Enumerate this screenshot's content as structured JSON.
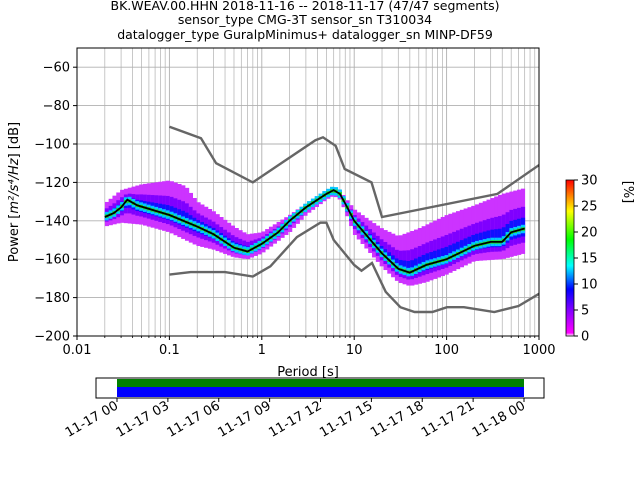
{
  "chart_data": {
    "type": "heatmap",
    "title_lines": [
      "BK.WEAV.00.HHN   2018-11-16 -- 2018-11-17  (47/47 segments)",
      "sensor_type CMG-3T sensor_sn T310034",
      "datalogger_type GuralpMinimus+ datalogger_sn MINP-DF59"
    ],
    "xlabel": "Period [s]",
    "ylabel_prefix": "Power [",
    "ylabel_math": "m²/s⁴/Hz",
    "ylabel_suffix": "] [dB]",
    "xscale": "log",
    "xlim": [
      0.01,
      1000
    ],
    "ylim": [
      -200,
      -50
    ],
    "grid": true,
    "x_ticks": [
      0.01,
      0.1,
      1,
      10,
      100,
      1000
    ],
    "x_tick_labels": [
      "0.01",
      "0.1",
      "1",
      "10",
      "100",
      "1000"
    ],
    "y_ticks": [
      -200,
      -180,
      -160,
      -140,
      -120,
      -100,
      -80,
      -60
    ],
    "y_tick_labels": [
      "−200",
      "−180",
      "−160",
      "−140",
      "−120",
      "−100",
      "−80",
      "−60"
    ],
    "colorbar": {
      "label": "[%]",
      "range": [
        0,
        30
      ],
      "ticks": [
        0,
        5,
        10,
        15,
        20,
        25,
        30
      ],
      "tick_labels": [
        "0",
        "5",
        "10",
        "15",
        "20",
        "25",
        "30"
      ]
    },
    "model_curves": {
      "high_noise_model": [
        [
          0.1,
          -91
        ],
        [
          0.22,
          -97
        ],
        [
          0.32,
          -110
        ],
        [
          0.8,
          -120
        ],
        [
          3.8,
          -98
        ],
        [
          4.6,
          -96.5
        ],
        [
          6.3,
          -101
        ],
        [
          7.9,
          -113
        ],
        [
          15.4,
          -120
        ],
        [
          20,
          -138
        ],
        [
          354.8,
          -126
        ],
        [
          1000,
          -111
        ]
      ],
      "low_noise_model": [
        [
          0.1,
          -168
        ],
        [
          0.17,
          -166.7
        ],
        [
          0.4,
          -166.7
        ],
        [
          0.8,
          -169
        ],
        [
          1.24,
          -163.7
        ],
        [
          2.4,
          -148.5
        ],
        [
          4.3,
          -141
        ],
        [
          5,
          -141
        ],
        [
          6,
          -150
        ],
        [
          10,
          -163
        ],
        [
          12,
          -166
        ],
        [
          15.6,
          -162
        ],
        [
          21.9,
          -177
        ],
        [
          31.6,
          -185
        ],
        [
          45,
          -187.5
        ],
        [
          70,
          -187.5
        ],
        [
          101,
          -185
        ],
        [
          154,
          -185
        ],
        [
          328,
          -187.5
        ],
        [
          600,
          -184.4
        ],
        [
          1000,
          -178
        ]
      ]
    },
    "mean_curve": [
      [
        0.02,
        -138
      ],
      [
        0.025,
        -136
      ],
      [
        0.03,
        -133
      ],
      [
        0.035,
        -129
      ],
      [
        0.045,
        -132
      ],
      [
        0.1,
        -137
      ],
      [
        0.2,
        -143
      ],
      [
        0.3,
        -147
      ],
      [
        0.5,
        -154
      ],
      [
        0.7,
        -156
      ],
      [
        1,
        -152
      ],
      [
        1.5,
        -146
      ],
      [
        2,
        -140
      ],
      [
        3,
        -133
      ],
      [
        5,
        -126
      ],
      [
        6,
        -124
      ],
      [
        7,
        -126
      ],
      [
        8,
        -131
      ],
      [
        10,
        -140
      ],
      [
        15,
        -150
      ],
      [
        20,
        -157
      ],
      [
        30,
        -165
      ],
      [
        40,
        -167
      ],
      [
        60,
        -163
      ],
      [
        100,
        -160
      ],
      [
        200,
        -153
      ],
      [
        300,
        -151
      ],
      [
        400,
        -151
      ],
      [
        500,
        -146
      ],
      [
        700,
        -144
      ]
    ],
    "spread_upper": [
      [
        0.02,
        -131
      ],
      [
        0.03,
        -124
      ],
      [
        0.05,
        -121
      ],
      [
        0.1,
        -119
      ],
      [
        0.15,
        -122
      ],
      [
        0.2,
        -130
      ],
      [
        0.3,
        -135
      ],
      [
        0.5,
        -143
      ],
      [
        0.7,
        -147
      ],
      [
        1,
        -146
      ],
      [
        2,
        -137
      ],
      [
        3,
        -131
      ],
      [
        5,
        -124
      ],
      [
        6,
        -122
      ],
      [
        7,
        -124
      ],
      [
        8,
        -128
      ],
      [
        10,
        -134
      ],
      [
        15,
        -140
      ],
      [
        20,
        -144
      ],
      [
        30,
        -148
      ],
      [
        50,
        -144
      ],
      [
        100,
        -137
      ],
      [
        200,
        -132
      ],
      [
        400,
        -126
      ],
      [
        700,
        -123
      ]
    ],
    "spread_lower": [
      [
        0.02,
        -143
      ],
      [
        0.03,
        -141
      ],
      [
        0.05,
        -142
      ],
      [
        0.1,
        -146
      ],
      [
        0.2,
        -153
      ],
      [
        0.3,
        -155
      ],
      [
        0.5,
        -159
      ],
      [
        0.7,
        -160
      ],
      [
        1,
        -157
      ],
      [
        2,
        -146
      ],
      [
        3,
        -137
      ],
      [
        5,
        -129
      ],
      [
        6,
        -127
      ],
      [
        7,
        -129
      ],
      [
        8,
        -135
      ],
      [
        10,
        -147
      ],
      [
        15,
        -157
      ],
      [
        20,
        -164
      ],
      [
        30,
        -172
      ],
      [
        40,
        -174
      ],
      [
        60,
        -172
      ],
      [
        100,
        -168
      ],
      [
        200,
        -161
      ],
      [
        400,
        -160
      ],
      [
        700,
        -157
      ]
    ],
    "coverage_timeline": {
      "tick_labels": [
        "11-17 00",
        "11-17 03",
        "11-17 06",
        "11-17 09",
        "11-17 12",
        "11-17 15",
        "11-17 18",
        "11-17 21",
        "11-18 00"
      ],
      "bar_colors": [
        "#008000",
        "#0000ff"
      ]
    }
  },
  "colors": {
    "model_line": "#666666",
    "mean_line": "#000000",
    "grid": "#b0b0b0"
  }
}
